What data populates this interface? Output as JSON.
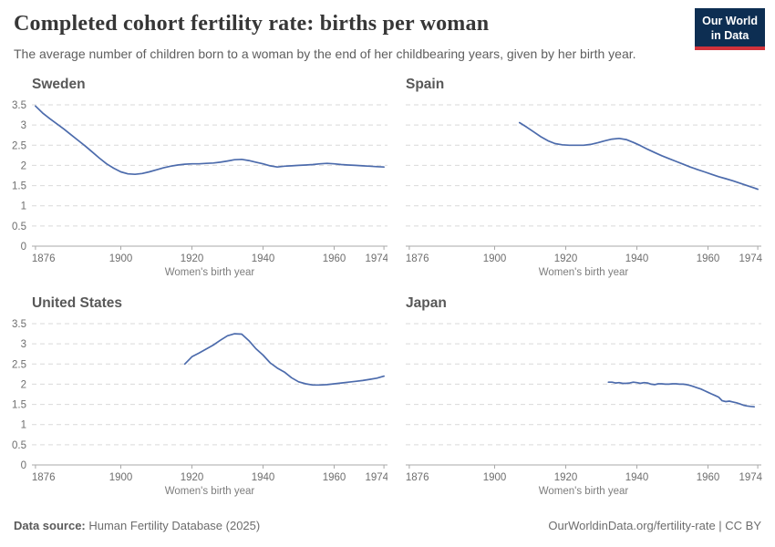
{
  "header": {
    "title": "Completed cohort fertility rate: births per woman",
    "subtitle": "The average number of children born to a woman by the end of her childbearing years, given by her birth year.",
    "logo": {
      "line1": "Our World",
      "line2": "in Data",
      "bg_color": "#0d2e52",
      "accent_color": "#d1323b"
    }
  },
  "footer": {
    "source_label": "Data source:",
    "source_text": " Human Fertility Database (2025)",
    "right_text": "OurWorldinData.org/fertility-rate | CC BY"
  },
  "chart_style": {
    "line_color": "#4c6bac",
    "grid_color": "#d9d9d9",
    "axis_color": "#a8a8a8",
    "tick_label_color": "#6e6e6e",
    "axis_label_color": "#7d7d7d"
  },
  "chart_data": [
    {
      "type": "line",
      "title": "Sweden",
      "xlabel": "Women's birth year",
      "ylabel": "",
      "xlim": [
        1875,
        1975
      ],
      "ylim": [
        0,
        3.5
      ],
      "xticks": [
        1876,
        1900,
        1920,
        1940,
        1960,
        1974
      ],
      "yticks": [
        0,
        0.5,
        1,
        1.5,
        2,
        2.5,
        3,
        3.5
      ],
      "grid": true,
      "show_y_tick_labels": true,
      "x": [
        1876,
        1878,
        1880,
        1882,
        1884,
        1886,
        1888,
        1890,
        1892,
        1894,
        1896,
        1898,
        1900,
        1902,
        1904,
        1906,
        1908,
        1910,
        1912,
        1914,
        1916,
        1918,
        1920,
        1922,
        1924,
        1926,
        1928,
        1930,
        1932,
        1934,
        1936,
        1938,
        1940,
        1942,
        1944,
        1946,
        1948,
        1950,
        1952,
        1954,
        1956,
        1958,
        1960,
        1962,
        1964,
        1966,
        1968,
        1970,
        1972,
        1974
      ],
      "values": [
        3.47,
        3.3,
        3.16,
        3.03,
        2.9,
        2.76,
        2.62,
        2.48,
        2.33,
        2.18,
        2.04,
        1.93,
        1.84,
        1.79,
        1.78,
        1.8,
        1.84,
        1.89,
        1.94,
        1.98,
        2.01,
        2.03,
        2.04,
        2.04,
        2.05,
        2.06,
        2.08,
        2.11,
        2.14,
        2.15,
        2.12,
        2.08,
        2.04,
        1.99,
        1.96,
        1.98,
        1.99,
        2.0,
        2.01,
        2.02,
        2.04,
        2.05,
        2.04,
        2.02,
        2.01,
        2.0,
        1.99,
        1.98,
        1.97,
        1.96
      ]
    },
    {
      "type": "line",
      "title": "Spain",
      "xlabel": "Women's birth year",
      "ylabel": "",
      "xlim": [
        1875,
        1975
      ],
      "ylim": [
        0,
        3.5
      ],
      "xticks": [
        1876,
        1900,
        1920,
        1940,
        1960,
        1974
      ],
      "yticks": [
        0,
        0.5,
        1,
        1.5,
        2,
        2.5,
        3,
        3.5
      ],
      "grid": true,
      "show_y_tick_labels": false,
      "x": [
        1907,
        1909,
        1911,
        1913,
        1915,
        1917,
        1919,
        1921,
        1923,
        1925,
        1927,
        1929,
        1931,
        1933,
        1935,
        1937,
        1939,
        1941,
        1943,
        1945,
        1947,
        1949,
        1951,
        1953,
        1955,
        1957,
        1959,
        1961,
        1963,
        1965,
        1967,
        1969,
        1971,
        1973,
        1974
      ],
      "values": [
        3.06,
        2.95,
        2.83,
        2.71,
        2.61,
        2.54,
        2.51,
        2.5,
        2.5,
        2.5,
        2.52,
        2.56,
        2.61,
        2.65,
        2.67,
        2.64,
        2.57,
        2.49,
        2.4,
        2.32,
        2.24,
        2.17,
        2.1,
        2.03,
        1.96,
        1.9,
        1.84,
        1.78,
        1.72,
        1.67,
        1.62,
        1.56,
        1.5,
        1.44,
        1.41
      ]
    },
    {
      "type": "line",
      "title": "United States",
      "xlabel": "Women's birth year",
      "ylabel": "",
      "xlim": [
        1875,
        1975
      ],
      "ylim": [
        0,
        3.5
      ],
      "xticks": [
        1876,
        1900,
        1920,
        1940,
        1960,
        1974
      ],
      "yticks": [
        0,
        0.5,
        1,
        1.5,
        2,
        2.5,
        3,
        3.5
      ],
      "grid": true,
      "show_y_tick_labels": true,
      "x": [
        1918,
        1920,
        1922,
        1924,
        1926,
        1928,
        1930,
        1932,
        1934,
        1936,
        1938,
        1940,
        1942,
        1944,
        1946,
        1948,
        1950,
        1952,
        1954,
        1956,
        1958,
        1960,
        1962,
        1964,
        1966,
        1968,
        1970,
        1972,
        1974
      ],
      "values": [
        2.5,
        2.68,
        2.77,
        2.87,
        2.97,
        3.09,
        3.2,
        3.25,
        3.24,
        3.08,
        2.88,
        2.72,
        2.53,
        2.4,
        2.3,
        2.16,
        2.06,
        2.01,
        1.98,
        1.98,
        1.99,
        2.01,
        2.03,
        2.05,
        2.07,
        2.09,
        2.12,
        2.15,
        2.2
      ]
    },
    {
      "type": "line",
      "title": "Japan",
      "xlabel": "Women's birth year",
      "ylabel": "",
      "xlim": [
        1875,
        1975
      ],
      "ylim": [
        0,
        3.5
      ],
      "xticks": [
        1876,
        1900,
        1920,
        1940,
        1960,
        1974
      ],
      "yticks": [
        0,
        0.5,
        1,
        1.5,
        2,
        2.5,
        3,
        3.5
      ],
      "grid": true,
      "show_y_tick_labels": false,
      "x": [
        1932,
        1933,
        1934,
        1935,
        1936,
        1937,
        1938,
        1939,
        1940,
        1941,
        1942,
        1943,
        1944,
        1945,
        1946,
        1947,
        1948,
        1949,
        1950,
        1951,
        1952,
        1953,
        1954,
        1955,
        1956,
        1957,
        1958,
        1959,
        1960,
        1961,
        1962,
        1963,
        1964,
        1965,
        1966,
        1967,
        1968,
        1969,
        1970,
        1971,
        1972,
        1973
      ],
      "values": [
        2.05,
        2.05,
        2.03,
        2.04,
        2.02,
        2.02,
        2.03,
        2.05,
        2.04,
        2.02,
        2.04,
        2.03,
        2.0,
        1.99,
        2.01,
        2.01,
        2.0,
        2.0,
        2.01,
        2.01,
        2.0,
        2.0,
        1.99,
        1.97,
        1.94,
        1.91,
        1.88,
        1.84,
        1.8,
        1.76,
        1.72,
        1.68,
        1.59,
        1.57,
        1.58,
        1.56,
        1.54,
        1.51,
        1.48,
        1.46,
        1.45,
        1.44
      ]
    }
  ]
}
